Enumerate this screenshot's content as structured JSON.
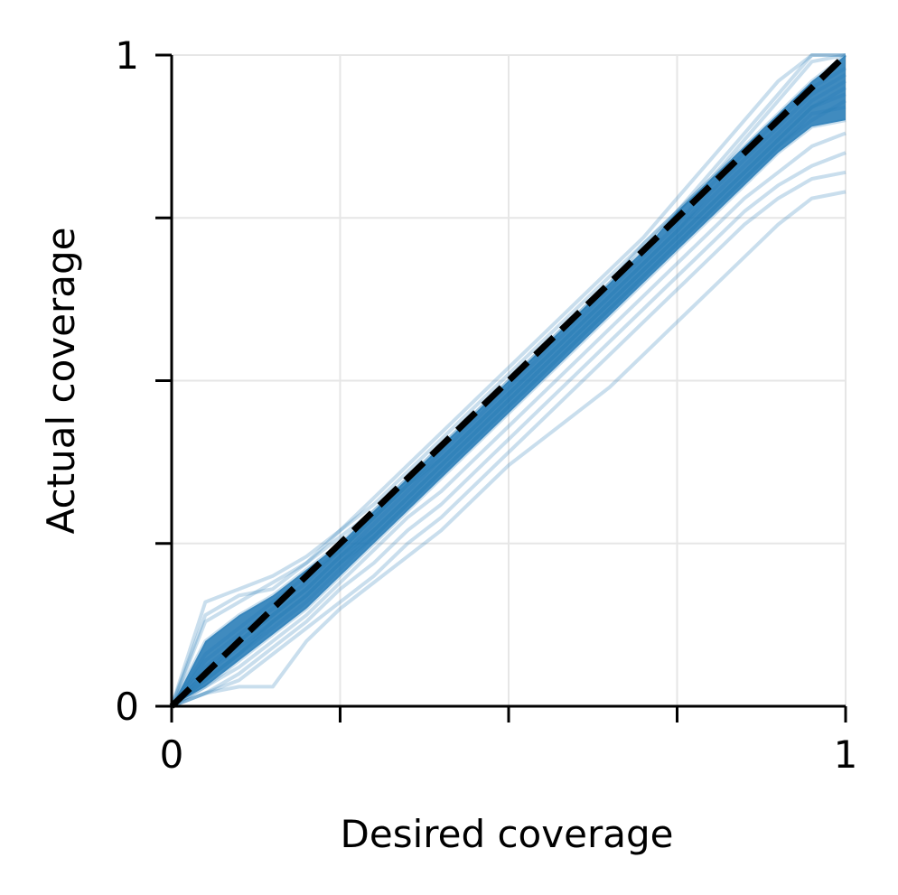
{
  "chart_data": {
    "type": "line",
    "title": "",
    "xlabel": "Desired coverage",
    "ylabel": "Actual coverage",
    "xlim": [
      0,
      1
    ],
    "ylim": [
      0,
      1
    ],
    "x_ticks": [
      0,
      0.25,
      0.5,
      0.75,
      1
    ],
    "y_ticks": [
      0,
      0.25,
      0.5,
      0.75,
      1
    ],
    "x_tick_labels": [
      "0",
      "",
      "",
      "",
      "1"
    ],
    "y_tick_labels": [
      "0",
      "",
      "",
      "",
      "1"
    ],
    "grid": true,
    "series_color": "#1f77b4",
    "series_opacity": 0.15,
    "reference_line": {
      "style": "dashed",
      "color": "#000000",
      "points": [
        [
          0,
          0
        ],
        [
          1,
          1
        ]
      ]
    },
    "series": [
      {
        "x": [
          0,
          0.05,
          0.1,
          0.15,
          0.2,
          0.25,
          0.3,
          0.35,
          0.4,
          0.45,
          0.5,
          0.55,
          0.6,
          0.65,
          0.7,
          0.75,
          0.8,
          0.85,
          0.9,
          0.95,
          1
        ],
        "y": [
          0,
          0.16,
          0.18,
          0.2,
          0.23,
          0.27,
          0.31,
          0.36,
          0.41,
          0.46,
          0.51,
          0.56,
          0.61,
          0.66,
          0.71,
          0.76,
          0.81,
          0.86,
          0.91,
          0.96,
          1
        ]
      },
      {
        "x": [
          0,
          0.05,
          0.1,
          0.15,
          0.2,
          0.25,
          0.3,
          0.35,
          0.4,
          0.45,
          0.5,
          0.55,
          0.6,
          0.65,
          0.7,
          0.75,
          0.8,
          0.85,
          0.9,
          0.95,
          1
        ],
        "y": [
          0,
          0.13,
          0.16,
          0.19,
          0.22,
          0.26,
          0.3,
          0.35,
          0.4,
          0.45,
          0.5,
          0.55,
          0.6,
          0.65,
          0.7,
          0.76,
          0.81,
          0.87,
          0.93,
          0.99,
          1
        ]
      },
      {
        "x": [
          0,
          0.05,
          0.1,
          0.15,
          0.2,
          0.25,
          0.3,
          0.35,
          0.4,
          0.45,
          0.5,
          0.55,
          0.6,
          0.65,
          0.7,
          0.75,
          0.8,
          0.85,
          0.9,
          0.95,
          1
        ],
        "y": [
          0,
          0.1,
          0.14,
          0.17,
          0.21,
          0.25,
          0.3,
          0.35,
          0.4,
          0.45,
          0.5,
          0.55,
          0.6,
          0.65,
          0.71,
          0.76,
          0.82,
          0.88,
          0.94,
          1,
          1
        ]
      },
      {
        "x": [
          0,
          0.05,
          0.1,
          0.15,
          0.2,
          0.25,
          0.3,
          0.35,
          0.4,
          0.45,
          0.5,
          0.55,
          0.6,
          0.65,
          0.7,
          0.75,
          0.8,
          0.85,
          0.9,
          0.95,
          1
        ],
        "y": [
          0,
          0.08,
          0.12,
          0.16,
          0.2,
          0.24,
          0.29,
          0.34,
          0.39,
          0.44,
          0.49,
          0.54,
          0.59,
          0.64,
          0.69,
          0.74,
          0.8,
          0.85,
          0.9,
          0.95,
          0.98
        ]
      },
      {
        "x": [
          0,
          0.05,
          0.1,
          0.15,
          0.2,
          0.25,
          0.3,
          0.35,
          0.4,
          0.45,
          0.5,
          0.55,
          0.6,
          0.65,
          0.7,
          0.75,
          0.8,
          0.85,
          0.9,
          0.95,
          1
        ],
        "y": [
          0,
          0.06,
          0.1,
          0.14,
          0.18,
          0.23,
          0.28,
          0.33,
          0.38,
          0.43,
          0.48,
          0.53,
          0.58,
          0.63,
          0.68,
          0.73,
          0.78,
          0.83,
          0.88,
          0.93,
          0.96
        ]
      },
      {
        "x": [
          0,
          0.05,
          0.1,
          0.15,
          0.2,
          0.25,
          0.3,
          0.35,
          0.4,
          0.45,
          0.5,
          0.55,
          0.6,
          0.65,
          0.7,
          0.75,
          0.8,
          0.85,
          0.9,
          0.95,
          1
        ],
        "y": [
          0,
          0.05,
          0.09,
          0.13,
          0.17,
          0.22,
          0.27,
          0.32,
          0.37,
          0.42,
          0.47,
          0.52,
          0.57,
          0.62,
          0.67,
          0.72,
          0.77,
          0.82,
          0.87,
          0.92,
          0.94
        ]
      },
      {
        "x": [
          0,
          0.05,
          0.1,
          0.15,
          0.2,
          0.25,
          0.3,
          0.35,
          0.4,
          0.45,
          0.5,
          0.55,
          0.6,
          0.65,
          0.7,
          0.75,
          0.8,
          0.85,
          0.9,
          0.95,
          1
        ],
        "y": [
          0,
          0.04,
          0.08,
          0.12,
          0.16,
          0.21,
          0.26,
          0.31,
          0.36,
          0.41,
          0.46,
          0.51,
          0.56,
          0.61,
          0.66,
          0.71,
          0.76,
          0.81,
          0.86,
          0.91,
          0.92
        ]
      },
      {
        "x": [
          0,
          0.05,
          0.1,
          0.15,
          0.2,
          0.25,
          0.3,
          0.35,
          0.4,
          0.45,
          0.5,
          0.55,
          0.6,
          0.65,
          0.7,
          0.75,
          0.8,
          0.85,
          0.9,
          0.95,
          1
        ],
        "y": [
          0,
          0.03,
          0.07,
          0.11,
          0.15,
          0.2,
          0.25,
          0.3,
          0.35,
          0.4,
          0.45,
          0.5,
          0.55,
          0.6,
          0.65,
          0.7,
          0.75,
          0.8,
          0.85,
          0.89,
          0.9
        ]
      },
      {
        "x": [
          0,
          0.05,
          0.1,
          0.15,
          0.2,
          0.25,
          0.3,
          0.35,
          0.4,
          0.45,
          0.5,
          0.55,
          0.6,
          0.65,
          0.7,
          0.75,
          0.8,
          0.85,
          0.9,
          0.95,
          1
        ],
        "y": [
          0,
          0.03,
          0.06,
          0.1,
          0.14,
          0.19,
          0.24,
          0.29,
          0.33,
          0.38,
          0.43,
          0.48,
          0.53,
          0.58,
          0.63,
          0.68,
          0.73,
          0.78,
          0.82,
          0.86,
          0.88
        ]
      },
      {
        "x": [
          0,
          0.05,
          0.1,
          0.15,
          0.2,
          0.25,
          0.3,
          0.35,
          0.4,
          0.45,
          0.5,
          0.55,
          0.6,
          0.65,
          0.7,
          0.75,
          0.8,
          0.85,
          0.9,
          0.95,
          1
        ],
        "y": [
          0,
          0.02,
          0.05,
          0.09,
          0.13,
          0.18,
          0.22,
          0.27,
          0.31,
          0.36,
          0.41,
          0.46,
          0.51,
          0.56,
          0.61,
          0.66,
          0.71,
          0.76,
          0.8,
          0.83,
          0.85
        ]
      },
      {
        "x": [
          0,
          0.05,
          0.1,
          0.15,
          0.2,
          0.25,
          0.3,
          0.35,
          0.4,
          0.45,
          0.5,
          0.55,
          0.6,
          0.65,
          0.7,
          0.75,
          0.8,
          0.85,
          0.9,
          0.95,
          1
        ],
        "y": [
          0,
          0.02,
          0.04,
          0.08,
          0.12,
          0.16,
          0.2,
          0.25,
          0.29,
          0.34,
          0.39,
          0.44,
          0.49,
          0.54,
          0.59,
          0.64,
          0.69,
          0.74,
          0.78,
          0.81,
          0.82
        ]
      },
      {
        "x": [
          0,
          0.05,
          0.1,
          0.15,
          0.2,
          0.25,
          0.3,
          0.35,
          0.4,
          0.45,
          0.5,
          0.55,
          0.6,
          0.65,
          0.7,
          0.75,
          0.8,
          0.85,
          0.9,
          0.95,
          1
        ],
        "y": [
          0,
          0.02,
          0.03,
          0.03,
          0.1,
          0.15,
          0.19,
          0.23,
          0.27,
          0.32,
          0.37,
          0.41,
          0.45,
          0.49,
          0.54,
          0.59,
          0.64,
          0.69,
          0.74,
          0.78,
          0.79
        ]
      },
      {
        "x": [
          0,
          0.05,
          0.1,
          0.15,
          0.2,
          0.25,
          0.3,
          0.35,
          0.4,
          0.45,
          0.5,
          0.55,
          0.6,
          0.65,
          0.7,
          0.75,
          0.8,
          0.85,
          0.9,
          0.95,
          1
        ],
        "y": [
          0,
          0.14,
          0.17,
          0.18,
          0.22,
          0.27,
          0.32,
          0.37,
          0.42,
          0.47,
          0.52,
          0.57,
          0.62,
          0.67,
          0.72,
          0.78,
          0.84,
          0.9,
          0.96,
          1,
          1
        ]
      },
      {
        "x": [
          0,
          0.05,
          0.1,
          0.15,
          0.2,
          0.25,
          0.3,
          0.35,
          0.4,
          0.45,
          0.5,
          0.55,
          0.6,
          0.65,
          0.7,
          0.75,
          0.8,
          0.85,
          0.9,
          0.95,
          1
        ],
        "y": [
          0,
          0.07,
          0.11,
          0.15,
          0.19,
          0.24,
          0.29,
          0.34,
          0.38,
          0.43,
          0.48,
          0.53,
          0.58,
          0.63,
          0.68,
          0.73,
          0.79,
          0.84,
          0.89,
          0.94,
          0.97
        ]
      },
      {
        "x": [
          0,
          0.05,
          0.1,
          0.15,
          0.2,
          0.25,
          0.3,
          0.35,
          0.4,
          0.45,
          0.5,
          0.55,
          0.6,
          0.65,
          0.7,
          0.75,
          0.8,
          0.85,
          0.9,
          0.95,
          1
        ],
        "y": [
          0,
          0.05,
          0.1,
          0.14,
          0.18,
          0.23,
          0.27,
          0.32,
          0.37,
          0.42,
          0.47,
          0.52,
          0.57,
          0.62,
          0.67,
          0.72,
          0.77,
          0.82,
          0.87,
          0.92,
          0.95
        ]
      },
      {
        "x": [
          0,
          0.05,
          0.1,
          0.15,
          0.2,
          0.25,
          0.3,
          0.35,
          0.4,
          0.45,
          0.5,
          0.55,
          0.6,
          0.65,
          0.7,
          0.75,
          0.8,
          0.85,
          0.9,
          0.95,
          1
        ],
        "y": [
          0,
          0.04,
          0.08,
          0.13,
          0.17,
          0.22,
          0.26,
          0.31,
          0.36,
          0.41,
          0.46,
          0.51,
          0.56,
          0.61,
          0.66,
          0.71,
          0.76,
          0.81,
          0.86,
          0.9,
          0.93
        ]
      }
    ]
  }
}
